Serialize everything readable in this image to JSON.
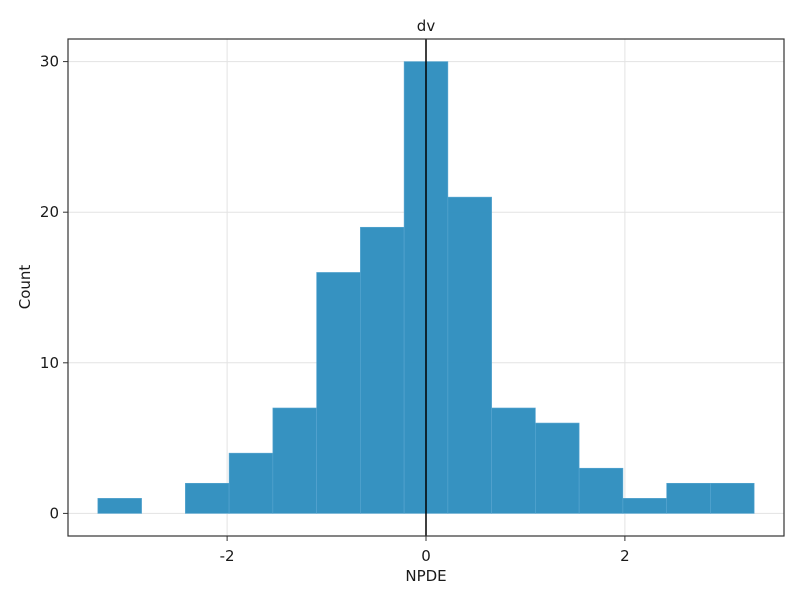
{
  "chart_data": {
    "type": "bar",
    "title": "dv",
    "xlabel": "NPDE",
    "ylabel": "Count",
    "xlim": [
      -3.6,
      3.6
    ],
    "ylim": [
      -1.5,
      31.5
    ],
    "xticks": [
      -2,
      0,
      2
    ],
    "yticks": [
      0,
      10,
      20,
      30
    ],
    "grid": true,
    "bar_color": "#2b8cbe",
    "reference_line": {
      "x": 0,
      "color": "#000000"
    },
    "bins": [
      {
        "x0": -3.3,
        "x1": -2.86,
        "count": 1
      },
      {
        "x0": -2.86,
        "x1": -2.42,
        "count": 0
      },
      {
        "x0": -2.42,
        "x1": -1.98,
        "count": 2
      },
      {
        "x0": -1.98,
        "x1": -1.54,
        "count": 4
      },
      {
        "x0": -1.54,
        "x1": -1.1,
        "count": 7
      },
      {
        "x0": -1.1,
        "x1": -0.66,
        "count": 16
      },
      {
        "x0": -0.66,
        "x1": -0.22,
        "count": 19
      },
      {
        "x0": -0.22,
        "x1": 0.22,
        "count": 30
      },
      {
        "x0": 0.22,
        "x1": 0.66,
        "count": 21
      },
      {
        "x0": 0.66,
        "x1": 1.1,
        "count": 7
      },
      {
        "x0": 1.1,
        "x1": 1.54,
        "count": 6
      },
      {
        "x0": 1.54,
        "x1": 1.98,
        "count": 3
      },
      {
        "x0": 1.98,
        "x1": 2.42,
        "count": 1
      },
      {
        "x0": 2.42,
        "x1": 2.86,
        "count": 2
      },
      {
        "x0": 2.86,
        "x1": 3.3,
        "count": 2
      }
    ]
  }
}
